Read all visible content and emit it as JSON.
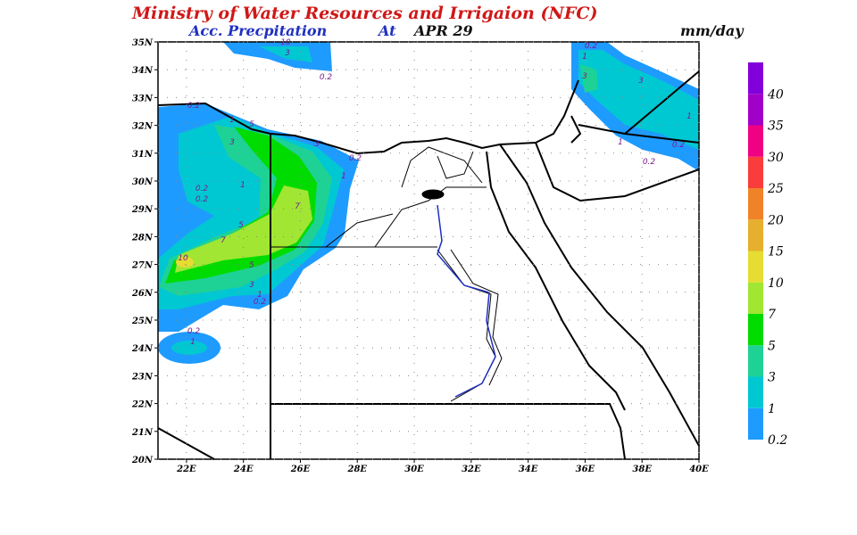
{
  "header": {
    "title": "Ministry of Water Resources and Irrigaion (NFC)",
    "subtitle_label": "Acc. Precpitation",
    "subtitle_at": "At",
    "subtitle_date": "APR 29",
    "unit": "mm/day"
  },
  "map": {
    "xlim": [
      21,
      40
    ],
    "ylim": [
      20,
      35
    ],
    "xticks": [
      {
        "value": 22,
        "label": "22E"
      },
      {
        "value": 24,
        "label": "24E"
      },
      {
        "value": 26,
        "label": "26E"
      },
      {
        "value": 28,
        "label": "28E"
      },
      {
        "value": 30,
        "label": "30E"
      },
      {
        "value": 32,
        "label": "32E"
      },
      {
        "value": 34,
        "label": "34E"
      },
      {
        "value": 36,
        "label": "36E"
      },
      {
        "value": 38,
        "label": "38E"
      },
      {
        "value": 40,
        "label": "40E"
      }
    ],
    "yticks": [
      {
        "value": 20,
        "label": "20N"
      },
      {
        "value": 21,
        "label": "21N"
      },
      {
        "value": 22,
        "label": "22N"
      },
      {
        "value": 23,
        "label": "23N"
      },
      {
        "value": 24,
        "label": "24N"
      },
      {
        "value": 25,
        "label": "25N"
      },
      {
        "value": 26,
        "label": "26N"
      },
      {
        "value": 27,
        "label": "27N"
      },
      {
        "value": 28,
        "label": "28N"
      },
      {
        "value": 29,
        "label": "29N"
      },
      {
        "value": 30,
        "label": "30N"
      },
      {
        "value": 31,
        "label": "31N"
      },
      {
        "value": 32,
        "label": "32N"
      },
      {
        "value": 33,
        "label": "33N"
      },
      {
        "value": 34,
        "label": "34N"
      },
      {
        "value": 35,
        "label": "35N"
      }
    ],
    "contour_labels": [
      "10",
      "3",
      "0.2",
      "0.2",
      "1",
      "5",
      "3",
      "3",
      "0.2",
      "1",
      "1",
      "0.2",
      "0.2",
      "7",
      "5",
      "7",
      "10",
      "5",
      "3",
      "1",
      "0.2",
      "0.2",
      "1",
      "0.2",
      "1",
      "3",
      "3",
      "1",
      "0.2",
      "0.2",
      "1"
    ]
  },
  "colorbar": {
    "levels": [
      0.2,
      1,
      3,
      5,
      7,
      10,
      15,
      20,
      25,
      30,
      35,
      40
    ],
    "colors": [
      "#1e9bff",
      "#00c8d2",
      "#1ed296",
      "#00dc00",
      "#a0e632",
      "#e6dc32",
      "#e6af2d",
      "#f08228",
      "#fa3c3c",
      "#f00082",
      "#a000c8",
      "#8200dc"
    ]
  }
}
